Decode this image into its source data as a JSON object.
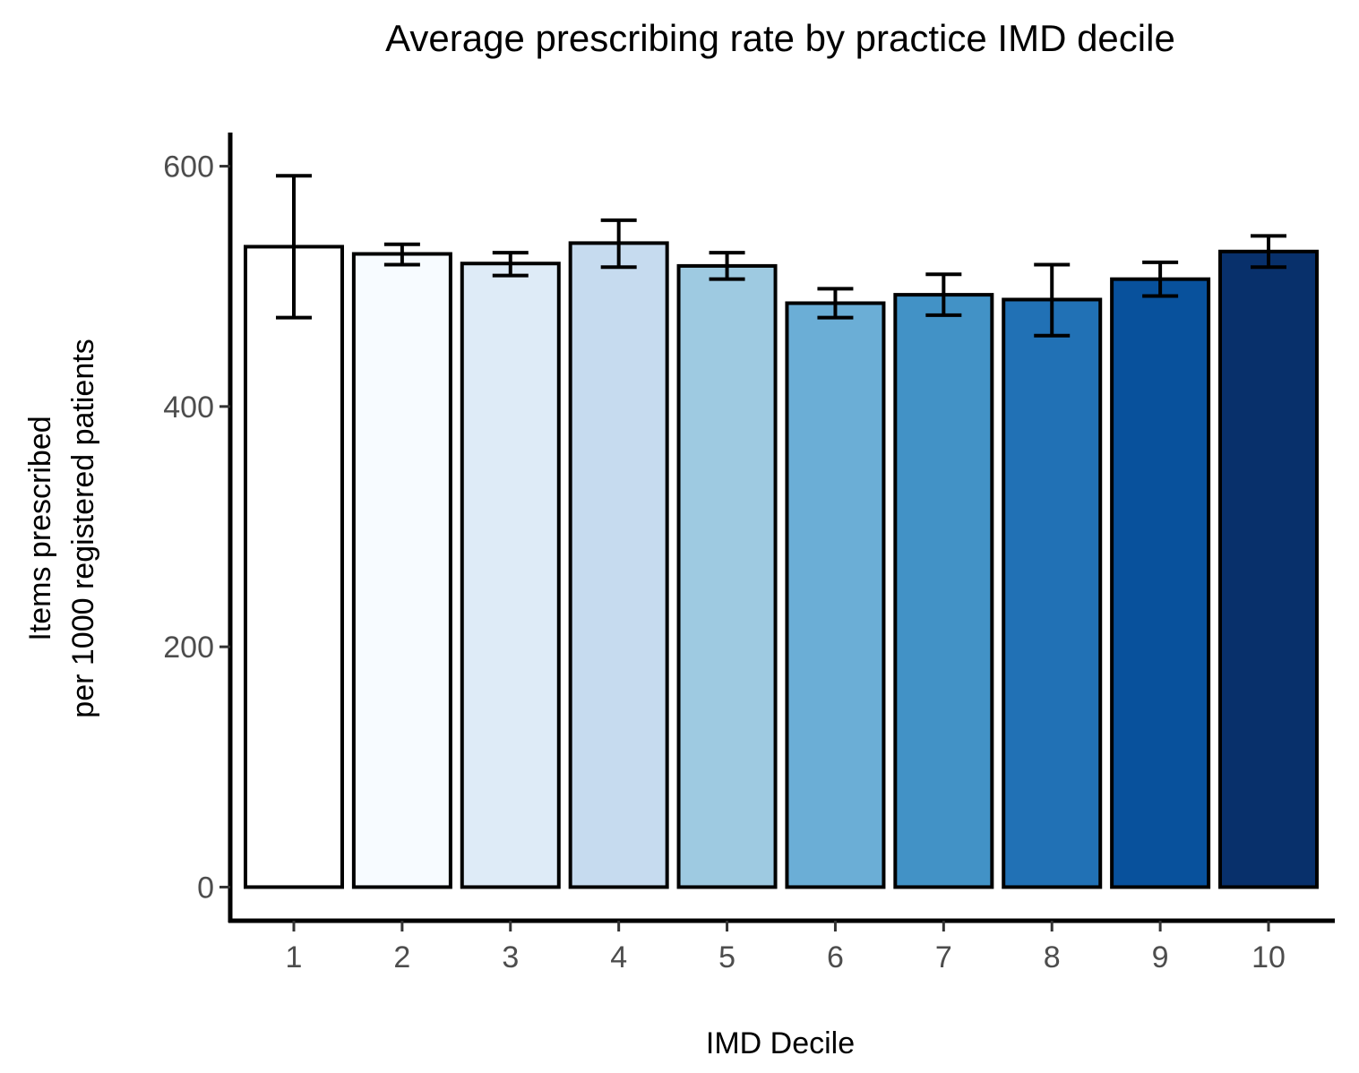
{
  "chart_data": {
    "type": "bar",
    "title": "Average prescribing rate by practice IMD decile",
    "xlabel": "IMD Decile",
    "ylabel_lines": [
      "Items prescribed",
      "per 1000 registered patients"
    ],
    "categories": [
      "1",
      "2",
      "3",
      "4",
      "5",
      "6",
      "7",
      "8",
      "9",
      "10"
    ],
    "values": [
      533,
      527,
      519,
      536,
      517,
      486,
      493,
      489,
      506,
      529
    ],
    "error_low": [
      474,
      518,
      509,
      516,
      506,
      474,
      476,
      459,
      492,
      516
    ],
    "error_high": [
      592,
      535,
      528,
      555,
      528,
      498,
      510,
      518,
      520,
      542
    ],
    "colors": [
      "#ffffff",
      "#f7fbff",
      "#deebf7",
      "#c6dbef",
      "#9ecae1",
      "#6baed6",
      "#4292c6",
      "#2171b5",
      "#08519c",
      "#08306b"
    ],
    "ylim": [
      -28,
      628
    ],
    "yticks": [
      0,
      200,
      400,
      600
    ],
    "grid": false,
    "legend": "none"
  }
}
